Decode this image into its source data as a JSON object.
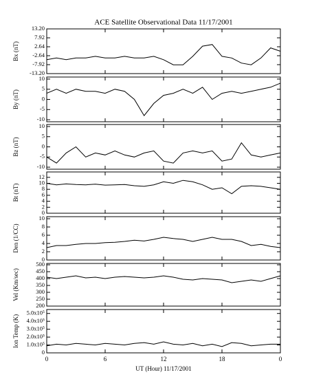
{
  "chart_data": [
    {
      "type": "line",
      "title": "ACE Satellite Observational Data   11/17/2001",
      "ylabel": "Bx (nT)",
      "x": [
        0,
        1,
        2,
        3,
        4,
        5,
        6,
        7,
        8,
        9,
        10,
        11,
        12,
        13,
        14,
        15,
        16,
        17,
        18,
        19,
        20,
        21,
        22,
        23,
        24
      ],
      "series": [
        {
          "color": "#000000",
          "values": [
            -5,
            -4,
            -5,
            -4,
            -4,
            -3,
            -4,
            -4,
            -3,
            -4,
            -4,
            -3,
            -5,
            -8,
            -8,
            -3,
            3,
            4,
            -3,
            -4,
            -7,
            -8,
            -4,
            2,
            0
          ]
        }
      ],
      "xlim": [
        0,
        24
      ],
      "ylim": [
        -13.2,
        13.2
      ],
      "yticks": [
        {
          "value": -13.2,
          "label": "-13.20"
        },
        {
          "value": -7.92,
          "label": "-7.92"
        },
        {
          "value": -2.64,
          "label": "-2.64"
        },
        {
          "value": 2.64,
          "label": "2.64"
        },
        {
          "value": 7.92,
          "label": "7.92"
        },
        {
          "value": 13.2,
          "label": "13.20"
        }
      ]
    },
    {
      "type": "line",
      "ylabel": "By (nT)",
      "x": [
        0,
        1,
        2,
        3,
        4,
        5,
        6,
        7,
        8,
        9,
        10,
        11,
        12,
        13,
        14,
        15,
        16,
        17,
        18,
        19,
        20,
        21,
        22,
        23,
        24
      ],
      "series": [
        {
          "color": "#000000",
          "values": [
            3,
            5,
            3,
            5,
            4,
            4,
            3,
            5,
            4,
            0,
            -8,
            -2,
            2,
            3,
            5,
            3,
            6,
            0,
            3,
            4,
            3,
            4,
            5,
            6,
            8
          ]
        }
      ],
      "xlim": [
        0,
        24
      ],
      "ylim": [
        -11,
        11
      ],
      "yticks": [
        -10,
        -5,
        0,
        5,
        10
      ]
    },
    {
      "type": "line",
      "ylabel": "Bz (nT)",
      "x": [
        0,
        1,
        2,
        3,
        4,
        5,
        6,
        7,
        8,
        9,
        10,
        11,
        12,
        13,
        14,
        15,
        16,
        17,
        18,
        19,
        20,
        21,
        22,
        23,
        24
      ],
      "series": [
        {
          "color": "#000000",
          "values": [
            -5,
            -8,
            -3,
            0,
            -5,
            -3,
            -4,
            -2,
            -4,
            -5,
            -3,
            -2,
            -7,
            -8,
            -3,
            -2,
            -3,
            -2,
            -7,
            -6,
            2,
            -4,
            -5,
            -4,
            -3
          ]
        }
      ],
      "xlim": [
        0,
        24
      ],
      "ylim": [
        -11,
        11
      ],
      "yticks": [
        -10,
        -5,
        0,
        5,
        10
      ]
    },
    {
      "type": "line",
      "ylabel": "Bt (nT)",
      "x": [
        0,
        1,
        2,
        3,
        4,
        5,
        6,
        7,
        8,
        9,
        10,
        11,
        12,
        13,
        14,
        15,
        16,
        17,
        18,
        19,
        20,
        21,
        22,
        23,
        24
      ],
      "series": [
        {
          "color": "#000000",
          "values": [
            10,
            9.5,
            9.8,
            9.6,
            9.5,
            9.7,
            9.4,
            9.5,
            9.6,
            9.2,
            9,
            9.5,
            10.5,
            10,
            11,
            10.5,
            9.5,
            8,
            8.5,
            6.5,
            9,
            9.2,
            9,
            8.5,
            8
          ]
        }
      ],
      "xlim": [
        0,
        24
      ],
      "ylim": [
        0,
        13.8
      ],
      "yticks": [
        0,
        2,
        4,
        6,
        8,
        10,
        12
      ]
    },
    {
      "type": "line",
      "ylabel": "Den (1/CC)",
      "x": [
        0,
        1,
        2,
        3,
        4,
        5,
        6,
        7,
        8,
        9,
        10,
        11,
        12,
        13,
        14,
        15,
        16,
        17,
        18,
        19,
        20,
        21,
        22,
        23,
        24
      ],
      "series": [
        {
          "color": "#000000",
          "values": [
            3,
            3.5,
            3.5,
            3.8,
            4,
            4,
            4.2,
            4.3,
            4.5,
            4.8,
            4.6,
            5,
            5.5,
            5.2,
            5,
            4.5,
            5,
            5.5,
            5,
            5,
            4.5,
            3.5,
            3.8,
            3.3,
            3
          ]
        }
      ],
      "xlim": [
        0,
        24
      ],
      "ylim": [
        0,
        10.5
      ],
      "yticks": [
        0,
        2,
        4,
        6,
        8,
        10
      ]
    },
    {
      "type": "line",
      "ylabel": "Vel (Km/sec)",
      "x": [
        0,
        1,
        2,
        3,
        4,
        5,
        6,
        7,
        8,
        9,
        10,
        11,
        12,
        13,
        14,
        15,
        16,
        17,
        18,
        19,
        20,
        21,
        22,
        23,
        24
      ],
      "series": [
        {
          "color": "#000000",
          "values": [
            410,
            400,
            410,
            420,
            405,
            410,
            400,
            410,
            415,
            410,
            405,
            410,
            420,
            410,
            395,
            390,
            400,
            395,
            390,
            370,
            380,
            390,
            380,
            400,
            420
          ]
        }
      ],
      "xlim": [
        0,
        24
      ],
      "ylim": [
        200,
        510
      ],
      "yticks": [
        200,
        250,
        300,
        350,
        400,
        450,
        500
      ]
    },
    {
      "type": "line",
      "ylabel": "Ion Temp (K)",
      "xlabel": "UT (Hour)  11/17/2001",
      "x": [
        0,
        1,
        2,
        3,
        4,
        5,
        6,
        7,
        8,
        9,
        10,
        11,
        12,
        13,
        14,
        15,
        16,
        17,
        18,
        19,
        20,
        21,
        22,
        23,
        24
      ],
      "series": [
        {
          "color": "#000000",
          "values": [
            90000,
            110000,
            100000,
            120000,
            110000,
            100000,
            120000,
            110000,
            100000,
            120000,
            130000,
            110000,
            140000,
            110000,
            100000,
            120000,
            90000,
            110000,
            80000,
            130000,
            120000,
            90000,
            100000,
            110000,
            110000
          ]
        }
      ],
      "xlim": [
        0,
        24
      ],
      "ylim": [
        0,
        550000
      ],
      "yticks": [
        0,
        {
          "value": 100000,
          "label": "1.0x10⁵"
        },
        {
          "value": 200000,
          "label": "2.0x10⁵"
        },
        {
          "value": 300000,
          "label": "3.0x10⁵"
        },
        {
          "value": 400000,
          "label": "4.0x10⁵"
        },
        {
          "value": 500000,
          "label": "5.0x10⁵"
        }
      ],
      "xticks": [
        0,
        6,
        12,
        18,
        {
          "value": 24,
          "label": "0"
        }
      ]
    }
  ]
}
